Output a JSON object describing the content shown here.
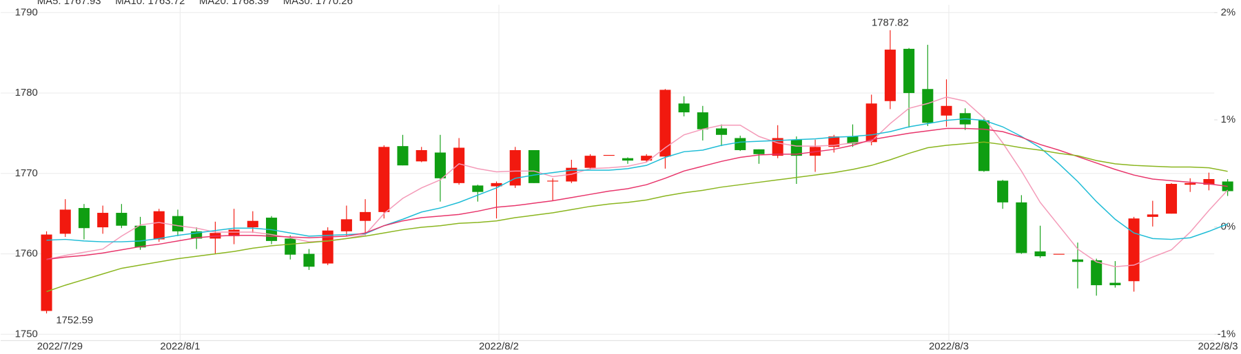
{
  "chart_data": {
    "type": "candlestick",
    "categories": [
      "2022/7/29",
      null,
      null,
      null,
      null,
      null,
      null,
      "2022/8/1",
      null,
      null,
      null,
      null,
      null,
      null,
      null,
      null,
      null,
      null,
      null,
      null,
      null,
      null,
      null,
      null,
      "2022/8/2",
      null,
      null,
      null,
      null,
      null,
      null,
      null,
      null,
      null,
      null,
      null,
      null,
      null,
      null,
      null,
      null,
      null,
      null,
      null,
      null,
      null,
      null,
      null,
      "2022/8/3",
      null,
      null,
      null,
      null,
      null,
      null,
      null,
      null,
      null,
      null,
      null,
      null,
      null,
      null,
      "2022/8/3"
    ],
    "open": [
      1752.9,
      1762.5,
      1765.7,
      1763.3,
      1765.1,
      1763.5,
      1761.8,
      1764.7,
      1762.8,
      1761.9,
      1762.2,
      1763.3,
      1764.5,
      1761.9,
      1760,
      1758.8,
      1762.8,
      1764.1,
      1765.2,
      1773.4,
      1771.5,
      1772.6,
      1768.8,
      1768.5,
      1768.4,
      1768.5,
      1772.9,
      1769,
      1769,
      1770.7,
      1772.3,
      1771.9,
      1771.6,
      1772.1,
      1778.7,
      1777.6,
      1775.6,
      1774.4,
      1773,
      1772.2,
      1774.2,
      1772.2,
      1773.3,
      1774.6,
      1773.9,
      1779,
      1785.5,
      1780.5,
      1777.2,
      1777.5,
      1776.6,
      1769.1,
      1766.4,
      1760.3,
      1760,
      1759.3,
      1759.2,
      1756.4,
      1756.6,
      1764.6,
      1765,
      1768.6,
      1768.6,
      1769
    ],
    "high": [
      1762.8,
      1766.8,
      1766.2,
      1766,
      1766.2,
      1764.6,
      1765.6,
      1765.5,
      1763.3,
      1764,
      1765.6,
      1765.3,
      1764.7,
      1762.3,
      1760.6,
      1763.3,
      1766,
      1766.8,
      1773.5,
      1774.8,
      1773.3,
      1774.8,
      1774.4,
      1768.6,
      1769,
      1773.3,
      1772.9,
      1769.4,
      1771.7,
      1772.4,
      1772.3,
      1772,
      1772.4,
      1780.5,
      1779.6,
      1778.4,
      1776.1,
      1774.7,
      1773,
      1776,
      1774.6,
      1774.2,
      1774.8,
      1776.1,
      1779.8,
      1787.82,
      1785.6,
      1786,
      1781.7,
      1778.1,
      1777,
      1769.2,
      1767.3,
      1763.5,
      1760,
      1761.4,
      1759.4,
      1759.1,
      1764.6,
      1766.6,
      1768.8,
      1769.4,
      1770.1,
      1769.3
    ],
    "low": [
      1752.59,
      1762.1,
      1761.8,
      1762.5,
      1763.2,
      1760.5,
      1761.5,
      1762.2,
      1760.6,
      1760,
      1761.2,
      1762.6,
      1761.2,
      1759.3,
      1758,
      1758.6,
      1762.2,
      1762.3,
      1764.4,
      1771,
      1771.4,
      1766.5,
      1768.6,
      1766.5,
      1764.4,
      1768.2,
      1768.8,
      1766.6,
      1768.8,
      1770.5,
      1772.3,
      1771.2,
      1771.4,
      1770.6,
      1777.1,
      1774.1,
      1773.4,
      1772.8,
      1771.2,
      1771.9,
      1768.7,
      1770.2,
      1772.6,
      1773.3,
      1773.5,
      1778,
      1775.7,
      1775.9,
      1775.8,
      1775.4,
      1770.2,
      1765.6,
      1760,
      1759.5,
      1760,
      1755.7,
      1754.8,
      1755.8,
      1755.3,
      1763.4,
      1765,
      1767.7,
      1767.9,
      1767.2
    ],
    "close": [
      1762.4,
      1765.5,
      1763.2,
      1765.1,
      1763.5,
      1760.8,
      1765.3,
      1762.8,
      1761.9,
      1762.6,
      1763,
      1764.1,
      1761.6,
      1759.9,
      1758.4,
      1762.9,
      1764.3,
      1765.2,
      1773.3,
      1771,
      1772.9,
      1769.4,
      1773.2,
      1767.7,
      1768.8,
      1772.9,
      1768.8,
      1769.1,
      1770.7,
      1772.2,
      1772.3,
      1771.6,
      1772.2,
      1780.4,
      1777.6,
      1775.5,
      1774.8,
      1772.9,
      1772.4,
      1774.4,
      1772.2,
      1773.3,
      1774.6,
      1773.7,
      1778.7,
      1785.4,
      1780,
      1776.3,
      1778.4,
      1776.1,
      1770.3,
      1766.4,
      1760.1,
      1759.7,
      1760,
      1759,
      1756.1,
      1756.1,
      1764.4,
      1764.9,
      1768.7,
      1768.8,
      1769.3,
      1767.8
    ],
    "up_color": "#f2190f",
    "down_color": "#0f9e12",
    "series": [
      {
        "name": "MA5: 1767.93",
        "color": "#f49ab8",
        "values": [
          1759.3,
          1759.8,
          1760.2,
          1760.6,
          1762.2,
          1763.6,
          1763.9,
          1763.5,
          1763.2,
          1762.7,
          1762.7,
          1762.7,
          1762.4,
          1762,
          1761.5,
          1761.6,
          1761.9,
          1762.4,
          1765,
          1766.9,
          1768.2,
          1769.2,
          1771.2,
          1770.6,
          1770.2,
          1770.3,
          1770.3,
          1769.6,
          1769.9,
          1770.6,
          1770.7,
          1770.9,
          1771.4,
          1773.2,
          1774.8,
          1775.5,
          1776,
          1776,
          1774.6,
          1773.8,
          1773.4,
          1773.4,
          1773.5,
          1773.8,
          1774,
          1776.2,
          1778.1,
          1778.7,
          1779.5,
          1779,
          1776.9,
          1773.8,
          1770.3,
          1766.4,
          1763.5,
          1760.6,
          1759,
          1758.4,
          1758.6,
          1759.6,
          1760.5,
          1762.7,
          1765.4,
          1767.93
        ]
      },
      {
        "name": "MA10: 1763.72",
        "color": "#1dbcd6",
        "values": [
          1761.7,
          1761.8,
          1761.6,
          1761.5,
          1761.5,
          1761.6,
          1761.9,
          1762.3,
          1762.6,
          1762.9,
          1763.2,
          1763.2,
          1763,
          1762.6,
          1762.2,
          1762.3,
          1762.4,
          1762.5,
          1763.5,
          1764.3,
          1765.2,
          1765.7,
          1766.4,
          1767.3,
          1768.2,
          1769.4,
          1769.8,
          1770.1,
          1770.4,
          1770.4,
          1770.4,
          1770.6,
          1771,
          1772,
          1772.7,
          1772.9,
          1773.5,
          1773.9,
          1774,
          1774.1,
          1774.2,
          1774.3,
          1774.5,
          1774.6,
          1774.8,
          1775.2,
          1775.8,
          1776.2,
          1776.6,
          1776.8,
          1776.6,
          1775.8,
          1774.6,
          1773.2,
          1771.2,
          1769,
          1766.5,
          1764.3,
          1762.6,
          1761.9,
          1761.8,
          1762,
          1762.8,
          1763.72
        ]
      },
      {
        "name": "MA20: 1768.39",
        "color": "#e8356b",
        "values": [
          1759.3,
          1759.6,
          1759.8,
          1760.1,
          1760.5,
          1760.9,
          1761.2,
          1761.6,
          1762,
          1762.2,
          1762.3,
          1762.3,
          1762.2,
          1762.1,
          1762,
          1762.1,
          1762.2,
          1762.6,
          1763.5,
          1764.1,
          1764.5,
          1764.7,
          1764.9,
          1765.3,
          1765.8,
          1766,
          1766.3,
          1766.6,
          1767,
          1767.4,
          1767.8,
          1768.1,
          1768.6,
          1769.4,
          1770.3,
          1770.9,
          1771.5,
          1772,
          1772.3,
          1772.4,
          1772.4,
          1772.7,
          1773,
          1773.5,
          1774.2,
          1774.6,
          1775,
          1775.3,
          1775.6,
          1775.6,
          1775.5,
          1775.2,
          1774.5,
          1773.6,
          1772.9,
          1772.1,
          1771.3,
          1770.5,
          1769.8,
          1769.3,
          1769.1,
          1768.9,
          1768.7,
          1768.39
        ]
      },
      {
        "name": "MA30: 1770.26",
        "color": "#8ab51e",
        "values": [
          1755.3,
          1756.1,
          1756.8,
          1757.5,
          1758.2,
          1758.6,
          1759,
          1759.4,
          1759.7,
          1760,
          1760.3,
          1760.7,
          1761,
          1761.2,
          1761.4,
          1761.6,
          1761.9,
          1762.2,
          1762.6,
          1763,
          1763.3,
          1763.5,
          1763.8,
          1763.9,
          1764.1,
          1764.5,
          1764.8,
          1765.1,
          1765.5,
          1765.9,
          1766.2,
          1766.4,
          1766.7,
          1767.2,
          1767.6,
          1767.9,
          1768.3,
          1768.6,
          1768.9,
          1769.2,
          1769.5,
          1769.8,
          1770.1,
          1770.5,
          1771,
          1771.7,
          1772.5,
          1773.2,
          1773.5,
          1773.7,
          1773.9,
          1773.6,
          1773.2,
          1772.9,
          1772.5,
          1772.2,
          1771.6,
          1771.2,
          1771,
          1770.9,
          1770.8,
          1770.8,
          1770.7,
          1770.26
        ]
      }
    ],
    "ylim": [
      1750,
      1790
    ],
    "yticks": [
      1750,
      1760,
      1770,
      1780,
      1790
    ],
    "y2lim": [
      -1,
      2
    ],
    "y2ticks": [
      {
        "value": -1,
        "label": "-1%"
      },
      {
        "value": 0,
        "label": "0%"
      },
      {
        "value": 1,
        "label": "1%"
      },
      {
        "value": 2,
        "label": "2%"
      }
    ],
    "grid": true
  }
}
